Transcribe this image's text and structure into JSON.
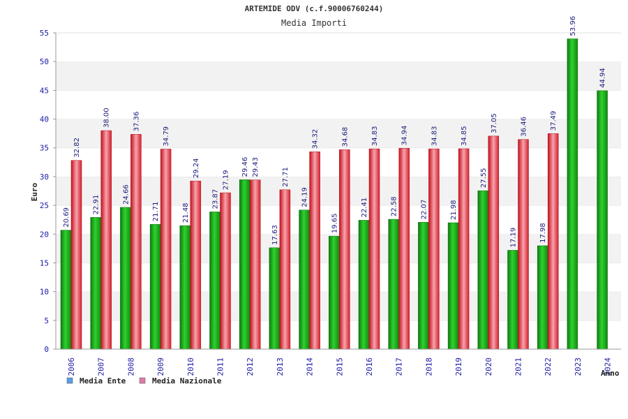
{
  "chart_data": {
    "type": "bar",
    "title": "ARTEMIDE ODV (c.f.90006760244)",
    "subtitle": "Media Importi",
    "xlabel": "Anno",
    "ylabel": "Euro",
    "ylim": [
      0,
      55
    ],
    "yticks": [
      0,
      5,
      10,
      15,
      20,
      25,
      30,
      35,
      40,
      45,
      50,
      55
    ],
    "categories": [
      "2006",
      "2007",
      "2008",
      "2009",
      "2010",
      "2011",
      "2012",
      "2013",
      "2014",
      "2015",
      "2016",
      "2017",
      "2018",
      "2019",
      "2020",
      "2021",
      "2022",
      "2023",
      "2024"
    ],
    "series": [
      {
        "name": "Media Ente",
        "color": "#1db31d",
        "values": [
          20.69,
          22.91,
          24.66,
          21.71,
          21.48,
          23.87,
          29.46,
          17.63,
          24.19,
          19.65,
          22.41,
          22.58,
          22.07,
          21.98,
          27.55,
          17.19,
          17.98,
          53.96,
          44.94
        ],
        "labels": [
          "20.69",
          "22.91",
          "24.66",
          "21.71",
          "21.48",
          "23.87",
          "29.46",
          "17.63",
          "24.19",
          "19.65",
          "22.41",
          "22.58",
          "22.07",
          "21.98",
          "27.55",
          "17.19",
          "17.98",
          "53.96",
          "44.94"
        ]
      },
      {
        "name": "Media Nazionale",
        "color": "#e8363f",
        "values": [
          32.82,
          38.0,
          37.36,
          34.79,
          29.24,
          27.19,
          29.43,
          27.71,
          34.32,
          34.68,
          34.83,
          34.94,
          34.83,
          34.85,
          37.05,
          36.46,
          37.49,
          null,
          null
        ],
        "labels": [
          "32.82",
          "38.00",
          "37.36",
          "34.79",
          "29.24",
          "27.19",
          "29.43",
          "27.71",
          "34.32",
          "34.68",
          "34.83",
          "34.94",
          "34.83",
          "34.85",
          "37.05",
          "36.46",
          "37.49",
          null,
          null
        ]
      }
    ],
    "legend": [
      {
        "label": "Media Ente",
        "color": "#5b9ee6"
      },
      {
        "label": "Media Nazionale",
        "color": "#e07aa8"
      }
    ],
    "grid": true,
    "legend_position": "bottom-left"
  }
}
